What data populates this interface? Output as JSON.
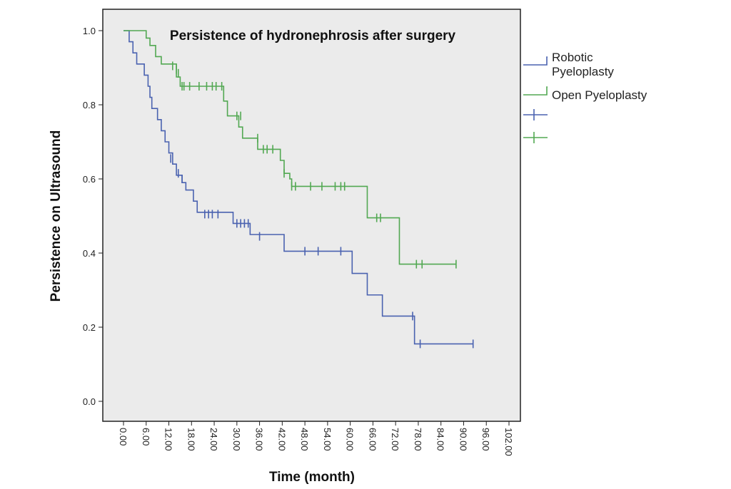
{
  "chart_data": {
    "type": "line",
    "title": "Persistence of hydronephrosis after surgery",
    "xlabel": "Time (month)",
    "ylabel": "Persistence on Ultrasound",
    "xlim": [
      0,
      102
    ],
    "ylim": [
      0,
      1
    ],
    "x_ticks": [
      "0.00",
      "6.00",
      "12.00",
      "18.00",
      "24.00",
      "30.00",
      "36.00",
      "42.00",
      "48.00",
      "54.00",
      "60.00",
      "66.00",
      "72.00",
      "78.00",
      "84.00",
      "90.00",
      "96.00",
      "102.00"
    ],
    "y_ticks": [
      "0.0",
      "0.2",
      "0.4",
      "0.6",
      "0.8",
      "1.0"
    ],
    "grid": false,
    "legend_position": "right",
    "background_color": "#ebebeb",
    "series": [
      {
        "name": "Robotic Pyeloplasty",
        "color": "#4a62b0",
        "steps": [
          [
            0,
            1.0
          ],
          [
            1.5,
            0.97
          ],
          [
            2.5,
            0.94
          ],
          [
            3.5,
            0.91
          ],
          [
            5.5,
            0.88
          ],
          [
            6.5,
            0.85
          ],
          [
            7,
            0.82
          ],
          [
            7.5,
            0.79
          ],
          [
            9,
            0.76
          ],
          [
            10,
            0.73
          ],
          [
            11,
            0.7
          ],
          [
            12,
            0.67
          ],
          [
            13,
            0.64
          ],
          [
            14,
            0.61
          ],
          [
            15.5,
            0.59
          ],
          [
            16.5,
            0.57
          ],
          [
            18.5,
            0.54
          ],
          [
            19.5,
            0.51
          ],
          [
            29,
            0.48
          ],
          [
            33.5,
            0.45
          ],
          [
            42.5,
            0.405
          ],
          [
            60.5,
            0.345
          ],
          [
            64.5,
            0.287
          ],
          [
            68.5,
            0.23
          ],
          [
            77,
            0.155
          ],
          [
            92.5,
            0.155
          ]
        ],
        "censored": [
          [
            12.5,
            0.655
          ],
          [
            14.5,
            0.615
          ],
          [
            15.5,
            0.6
          ],
          [
            21.5,
            0.505
          ],
          [
            22.5,
            0.505
          ],
          [
            23.5,
            0.505
          ],
          [
            25,
            0.505
          ],
          [
            30,
            0.48
          ],
          [
            31,
            0.48
          ],
          [
            32,
            0.48
          ],
          [
            33,
            0.48
          ],
          [
            36,
            0.445
          ],
          [
            48,
            0.405
          ],
          [
            51.5,
            0.405
          ],
          [
            57.5,
            0.405
          ],
          [
            76.5,
            0.23
          ],
          [
            78.5,
            0.155
          ],
          [
            92.5,
            0.155
          ]
        ]
      },
      {
        "name": "Open Pyeloplasty",
        "color": "#52a852",
        "steps": [
          [
            0,
            1.0
          ],
          [
            6,
            0.98
          ],
          [
            7,
            0.96
          ],
          [
            8.5,
            0.93
          ],
          [
            10,
            0.91
          ],
          [
            14,
            0.875
          ],
          [
            15,
            0.85
          ],
          [
            26.5,
            0.81
          ],
          [
            27.5,
            0.77
          ],
          [
            30.5,
            0.74
          ],
          [
            31.5,
            0.71
          ],
          [
            35.5,
            0.68
          ],
          [
            41.5,
            0.65
          ],
          [
            42.5,
            0.615
          ],
          [
            44,
            0.6
          ],
          [
            44.5,
            0.58
          ],
          [
            64.5,
            0.495
          ],
          [
            73,
            0.37
          ],
          [
            88,
            0.37
          ]
        ],
        "censored": [
          [
            13,
            0.905
          ],
          [
            14,
            0.895
          ],
          [
            14.5,
            0.885
          ],
          [
            15.5,
            0.85
          ],
          [
            16,
            0.85
          ],
          [
            17.5,
            0.85
          ],
          [
            20,
            0.85
          ],
          [
            22,
            0.85
          ],
          [
            23.5,
            0.85
          ],
          [
            24.5,
            0.85
          ],
          [
            26,
            0.85
          ],
          [
            30,
            0.77
          ],
          [
            31,
            0.77
          ],
          [
            35.5,
            0.71
          ],
          [
            37,
            0.68
          ],
          [
            38,
            0.68
          ],
          [
            39.5,
            0.68
          ],
          [
            42.5,
            0.615
          ],
          [
            44.5,
            0.58
          ],
          [
            45.5,
            0.58
          ],
          [
            49.5,
            0.58
          ],
          [
            52.5,
            0.58
          ],
          [
            56,
            0.58
          ],
          [
            57.5,
            0.58
          ],
          [
            58.5,
            0.58
          ],
          [
            67,
            0.495
          ],
          [
            68,
            0.495
          ],
          [
            77.5,
            0.37
          ],
          [
            79,
            0.37
          ],
          [
            88,
            0.37
          ]
        ]
      }
    ]
  }
}
